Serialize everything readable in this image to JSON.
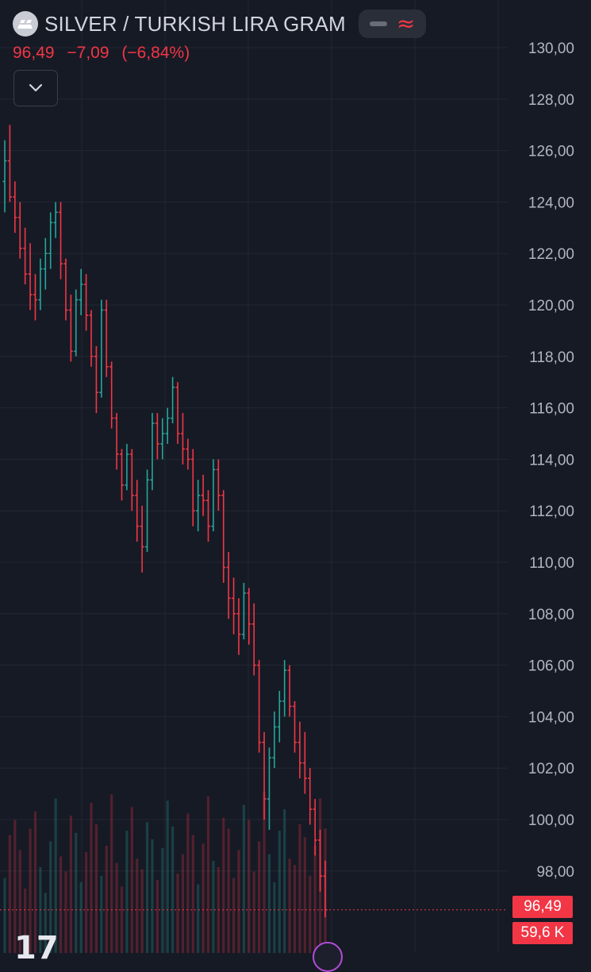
{
  "header": {
    "title": "SILVER / TURKISH LIRA GRAM",
    "logo_icon": "silver-bars-icon",
    "minus_icon": "minus-icon",
    "wave_symbol": "≈",
    "wave_icon": "approx-wave-icon"
  },
  "quote": {
    "last": "96,49",
    "change": "−7,09",
    "change_pct": "(−6,84%)"
  },
  "collapse_icon": "chevron-down-icon",
  "price_axis": {
    "labels": [
      "130,00",
      "128,00",
      "126,00",
      "124,00",
      "122,00",
      "120,00",
      "118,00",
      "116,00",
      "114,00",
      "112,00",
      "110,00",
      "108,00",
      "106,00",
      "104,00",
      "102,00",
      "100,00",
      "98,00"
    ],
    "current_price_label": "96,49",
    "volume_label": "59,6 K"
  },
  "colors": {
    "background": "#161a25",
    "up": "#26a69a",
    "down": "#f23645",
    "grid": "#232733",
    "axis_text": "#b2b5be"
  },
  "chart_data": {
    "type": "bar",
    "instrument": "SILVER / TURKISH LIRA GRAM",
    "ylim": [
      96,
      132
    ],
    "last_price": 96.49,
    "last_volume": "59,6 K",
    "ohlc": [
      [
        124.8,
        126.4,
        123.6,
        125.6
      ],
      [
        125.6,
        127.0,
        124.0,
        124.2
      ],
      [
        124.2,
        124.8,
        122.8,
        123.4
      ],
      [
        123.4,
        124.0,
        121.8,
        122.2
      ],
      [
        122.2,
        123.0,
        120.8,
        121.2
      ],
      [
        121.2,
        122.4,
        119.8,
        120.4
      ],
      [
        120.4,
        121.2,
        119.4,
        120.2
      ],
      [
        120.2,
        121.8,
        119.8,
        121.4
      ],
      [
        121.4,
        122.6,
        120.6,
        122.0
      ],
      [
        122.0,
        123.6,
        121.4,
        123.2
      ],
      [
        123.2,
        124.0,
        122.6,
        123.6
      ],
      [
        123.6,
        124.0,
        121.0,
        121.6
      ],
      [
        121.6,
        121.8,
        119.4,
        119.8
      ],
      [
        119.8,
        120.4,
        117.8,
        118.2
      ],
      [
        118.2,
        120.6,
        118.0,
        120.2
      ],
      [
        120.2,
        121.4,
        119.6,
        120.8
      ],
      [
        120.8,
        121.2,
        119.0,
        119.6
      ],
      [
        119.6,
        119.8,
        117.6,
        118.0
      ],
      [
        118.0,
        118.4,
        115.8,
        116.6
      ],
      [
        116.6,
        120.2,
        116.4,
        119.8
      ],
      [
        119.8,
        120.2,
        117.2,
        117.6
      ],
      [
        117.6,
        117.8,
        115.2,
        115.6
      ],
      [
        115.6,
        115.8,
        113.6,
        114.2
      ],
      [
        114.2,
        114.4,
        112.4,
        113.0
      ],
      [
        113.0,
        114.6,
        112.8,
        114.2
      ],
      [
        114.2,
        114.4,
        112.0,
        112.6
      ],
      [
        112.6,
        113.2,
        110.8,
        111.4
      ],
      [
        111.4,
        112.2,
        109.6,
        110.6
      ],
      [
        110.6,
        113.6,
        110.4,
        113.2
      ],
      [
        113.2,
        115.8,
        112.8,
        115.4
      ],
      [
        115.4,
        115.8,
        114.0,
        114.6
      ],
      [
        114.6,
        115.6,
        114.0,
        115.0
      ],
      [
        115.0,
        116.0,
        114.6,
        115.6
      ],
      [
        115.6,
        117.2,
        115.4,
        116.8
      ],
      [
        116.8,
        117.0,
        114.6,
        115.0
      ],
      [
        115.0,
        115.8,
        113.8,
        114.4
      ],
      [
        114.4,
        114.8,
        113.6,
        114.0
      ],
      [
        114.0,
        114.4,
        111.4,
        112.0
      ],
      [
        112.0,
        113.2,
        111.2,
        112.6
      ],
      [
        112.6,
        113.4,
        111.8,
        112.4
      ],
      [
        112.4,
        112.8,
        110.8,
        111.4
      ],
      [
        111.4,
        114.0,
        111.2,
        113.6
      ],
      [
        113.6,
        114.0,
        112.0,
        112.6
      ],
      [
        112.6,
        112.8,
        109.2,
        109.8
      ],
      [
        109.8,
        110.4,
        107.8,
        108.6
      ],
      [
        108.6,
        109.4,
        107.2,
        108.0
      ],
      [
        108.0,
        108.6,
        106.4,
        107.2
      ],
      [
        107.2,
        109.2,
        107.0,
        108.8
      ],
      [
        108.8,
        109.0,
        106.8,
        107.6
      ],
      [
        107.6,
        108.4,
        105.6,
        106.0
      ],
      [
        106.0,
        106.2,
        102.6,
        103.0
      ],
      [
        103.0,
        103.4,
        100.0,
        100.8
      ],
      [
        100.8,
        102.8,
        99.6,
        102.4
      ],
      [
        102.4,
        104.2,
        102.0,
        103.6
      ],
      [
        103.6,
        105.0,
        103.0,
        104.6
      ],
      [
        104.6,
        106.2,
        104.0,
        105.8
      ],
      [
        105.8,
        106.0,
        104.0,
        104.4
      ],
      [
        104.4,
        104.6,
        102.6,
        103.0
      ],
      [
        103.0,
        103.8,
        101.6,
        102.2
      ],
      [
        102.2,
        103.4,
        101.0,
        101.6
      ],
      [
        101.6,
        102.0,
        99.8,
        100.4
      ],
      [
        100.4,
        100.8,
        98.6,
        99.2
      ],
      [
        99.2,
        99.6,
        97.2,
        97.8
      ],
      [
        97.8,
        98.4,
        96.2,
        96.49
      ]
    ],
    "volume": [
      0.35,
      0.55,
      0.62,
      0.48,
      0.3,
      0.58,
      0.66,
      0.4,
      0.28,
      0.52,
      0.72,
      0.45,
      0.38,
      0.64,
      0.56,
      0.33,
      0.47,
      0.7,
      0.6,
      0.36,
      0.5,
      0.74,
      0.42,
      0.31,
      0.57,
      0.68,
      0.44,
      0.39,
      0.61,
      0.53,
      0.34,
      0.49,
      0.71,
      0.59,
      0.37,
      0.46,
      0.65,
      0.55,
      0.32,
      0.51,
      0.73,
      0.43,
      0.4,
      0.63,
      0.58,
      0.35,
      0.48,
      0.69,
      0.62,
      0.38,
      0.52,
      0.75,
      0.46,
      0.33,
      0.57,
      0.67,
      0.44,
      0.41,
      0.6,
      0.54,
      0.36,
      0.5,
      0.72,
      0.58
    ]
  }
}
